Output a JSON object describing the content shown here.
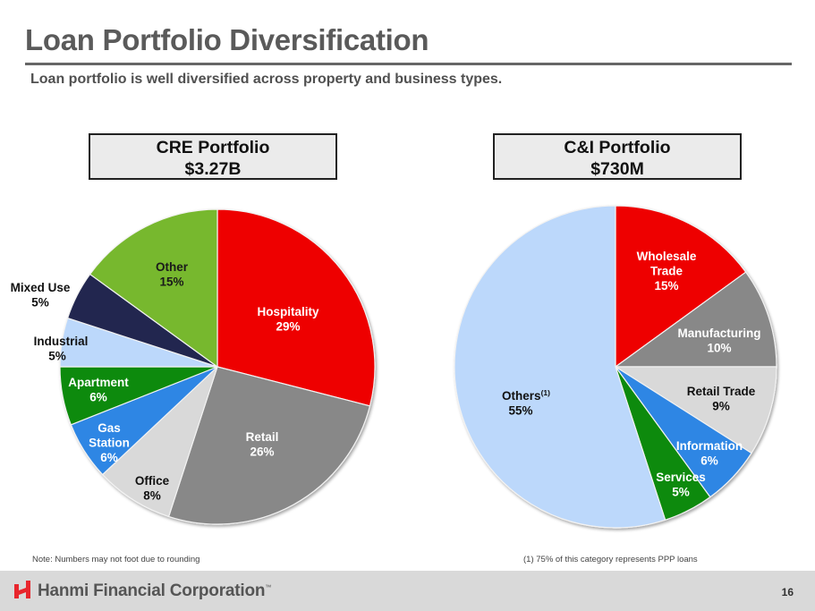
{
  "header": {
    "title": "Loan Portfolio Diversification",
    "subtitle": "Loan portfolio is well diversified across property and business types."
  },
  "chart_data": [
    {
      "type": "pie",
      "title": "CRE Portfolio",
      "subtitle": "$3.27B",
      "start": "12 o'clock",
      "direction": "clockwise",
      "slices": [
        {
          "label": "Hospitality",
          "value": 29,
          "display": "29%",
          "color": "#ee0000",
          "text_color": "#ffffff"
        },
        {
          "label": "Retail",
          "value": 26,
          "display": "26%",
          "color": "#888888",
          "text_color": "#ffffff"
        },
        {
          "label": "Office",
          "value": 8,
          "display": "8%",
          "color": "#d9d9d9",
          "text_color": "#111111"
        },
        {
          "label": "Gas Station",
          "value": 6,
          "display": "6%",
          "color": "#2f86e4",
          "text_color": "#ffffff"
        },
        {
          "label": "Apartment",
          "value": 6,
          "display": "6%",
          "color": "#0a8a0a",
          "text_color": "#ffffff"
        },
        {
          "label": "Industrial",
          "value": 5,
          "display": "5%",
          "color": "#bcd8fb",
          "text_color": "#111111"
        },
        {
          "label": "Mixed Use",
          "value": 5,
          "display": "5%",
          "color": "#23284f",
          "text_color": "#111111"
        },
        {
          "label": "Other",
          "value": 15,
          "display": "15%",
          "color": "#77b82e",
          "text_color": "#1a1a1a"
        }
      ]
    },
    {
      "type": "pie",
      "title": "C&I Portfolio",
      "subtitle": "$730M",
      "start": "12 o'clock",
      "direction": "clockwise",
      "slices": [
        {
          "label": "Wholesale Trade",
          "value": 15,
          "display": "15%",
          "color": "#ee0000",
          "text_color": "#ffffff"
        },
        {
          "label": "Manufacturing",
          "value": 10,
          "display": "10%",
          "color": "#888888",
          "text_color": "#ffffff"
        },
        {
          "label": "Retail Trade",
          "value": 9,
          "display": "9%",
          "color": "#d9d9d9",
          "text_color": "#111111"
        },
        {
          "label": "Information",
          "value": 6,
          "display": "6%",
          "color": "#2f86e4",
          "text_color": "#ffffff"
        },
        {
          "label": "Services",
          "value": 5,
          "display": "5%",
          "color": "#0a8a0a",
          "text_color": "#ffffff"
        },
        {
          "label": "Others",
          "superscript": "(1)",
          "value": 55,
          "display": "55%",
          "color": "#bcd8fb",
          "text_color": "#111111"
        }
      ]
    }
  ],
  "notes": {
    "left": "Note: Numbers may not foot due to rounding",
    "right": "(1) 75% of this category represents PPP loans"
  },
  "footer": {
    "company": "Hanmi Financial Corporation",
    "trademark": "™",
    "page_number": "16",
    "brand_color": "#e8262d"
  }
}
